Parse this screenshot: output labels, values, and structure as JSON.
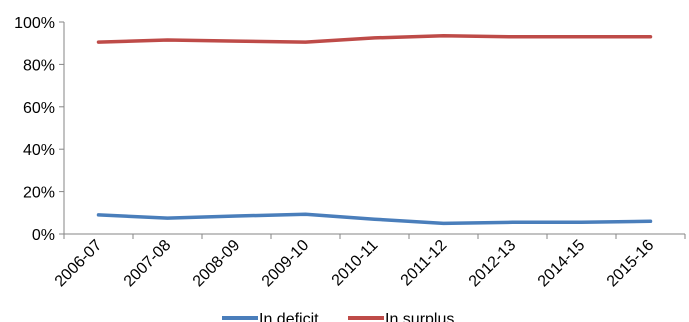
{
  "chart_data": {
    "type": "line",
    "categories": [
      "2006-07",
      "2007-08",
      "2008-09",
      "2009-10",
      "2010-11",
      "2011-12",
      "2012-13",
      "2014-15",
      "2015-16"
    ],
    "series": [
      {
        "name": "In deficit",
        "color": "#4a7ebb",
        "values": [
          9,
          7.5,
          8.5,
          9.3,
          7,
          5,
          5.5,
          5.5,
          6
        ]
      },
      {
        "name": "In surplus",
        "color": "#be4b48",
        "values": [
          90.5,
          91.5,
          91,
          90.5,
          92.5,
          93.5,
          93,
          93,
          93
        ]
      }
    ],
    "ylim": [
      0,
      100
    ],
    "yticks": [
      "0%",
      "20%",
      "40%",
      "60%",
      "80%",
      "100%"
    ],
    "ytick_values": [
      0,
      20,
      40,
      60,
      80,
      100
    ],
    "grid": false,
    "legend_position": "bottom",
    "title": "",
    "xlabel": "",
    "ylabel": ""
  }
}
